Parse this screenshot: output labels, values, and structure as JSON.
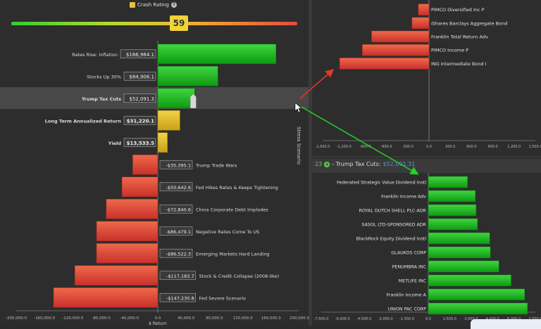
{
  "crash_rating": {
    "label": "Crash Rating",
    "value": "59",
    "level": 0.59
  },
  "stress_axis_title": "Stress Scenario",
  "chart_data": [
    {
      "type": "bar",
      "orientation": "horizontal",
      "categories": [
        "Rates Rise: Inflation",
        "Stocks Up 30%",
        "Trump Tax Cuts",
        "Long Term Annualized Return",
        "Yield",
        "Trump Trade Wars",
        "Fed Hikes Rates & Keeps Tightening",
        "China Corporate Debt Implodes",
        "Negative Rates Come To US",
        "Emerging Markets Hard Landing",
        "Stock & Credit Collapse (2008-like)",
        "Fed Severe Scenario"
      ],
      "value_labels": [
        "$166,964.1",
        "$84,906.1",
        "$52,091.3",
        "$31,220.1",
        "$13,533.5",
        "-$35,395.1",
        "-$50,642.6",
        "-$72,840.6",
        "-$86,479.1",
        "-$86,522.3",
        "-$117,183.7",
        "-$147,230.8"
      ],
      "values": [
        166964.1,
        84906.1,
        52091.3,
        31220.1,
        13533.5,
        -35395.1,
        -50642.6,
        -72840.6,
        -86479.1,
        -86522.3,
        -117183.7,
        -147230.8
      ],
      "kinds": [
        "pos",
        "pos",
        "pos",
        "gold",
        "gold",
        "neg",
        "neg",
        "neg",
        "neg",
        "neg",
        "neg",
        "neg"
      ],
      "xlim": [
        -200000,
        200000
      ],
      "xticks": [
        "-200,000.0",
        "-160,000.0",
        "-120,000.0",
        "-80,000.0",
        "-40,000.0",
        "0.0",
        "40,000.0",
        "80,000.0",
        "120,000.0",
        "160,000.0",
        "200,000.0"
      ],
      "xlabel": "$ Return"
    },
    {
      "type": "bar",
      "orientation": "horizontal",
      "categories": [
        "PIMCO Diversified Inc P",
        "iShares Barclays Aggregate Bond",
        "Franklin Total Return Adv",
        "PIMCO Income P",
        "ING Intermediate Bond I"
      ],
      "values": [
        -150,
        -240,
        -810,
        -940,
        -1260
      ],
      "xlim": [
        -1500,
        1500
      ],
      "xticks": [
        "-1,500.0",
        "-1,200.0",
        "-900.0",
        "-600.0",
        "-300.0",
        "0.0",
        "300.0",
        "600.0",
        "900.0",
        "1,200.0",
        "1,500.0"
      ]
    },
    {
      "type": "bar",
      "orientation": "horizontal",
      "header": {
        "count": "23",
        "title": "- Trump Tax Cuts:",
        "value": "$52,091.31"
      },
      "categories": [
        "Federated Strategic Value Dividend Instl",
        "Franklin Income Adv",
        "ROYAL DUTCH SHELL PLC-ADR",
        "SASOL LTD-SPONSORED ADR",
        "BlackRock Equity Dividend Instl",
        "GLAUKOS CORP",
        "PENUMBRA INC",
        "METLIFE INC",
        "Franklin Income A",
        "UNION PAC CORP"
      ],
      "values": [
        2750,
        3300,
        3350,
        3450,
        4300,
        4350,
        4950,
        5800,
        6750,
        6950
      ],
      "xlim": [
        -7500,
        7500
      ],
      "xticks": [
        "-7,500.0",
        "-6,000.0",
        "-4,500.0",
        "-3,000.0",
        "-1,500.0",
        "0.0",
        "1,500.0",
        "3,000.0",
        "4,500.0",
        "6,000.0",
        "7,500.0"
      ]
    }
  ]
}
